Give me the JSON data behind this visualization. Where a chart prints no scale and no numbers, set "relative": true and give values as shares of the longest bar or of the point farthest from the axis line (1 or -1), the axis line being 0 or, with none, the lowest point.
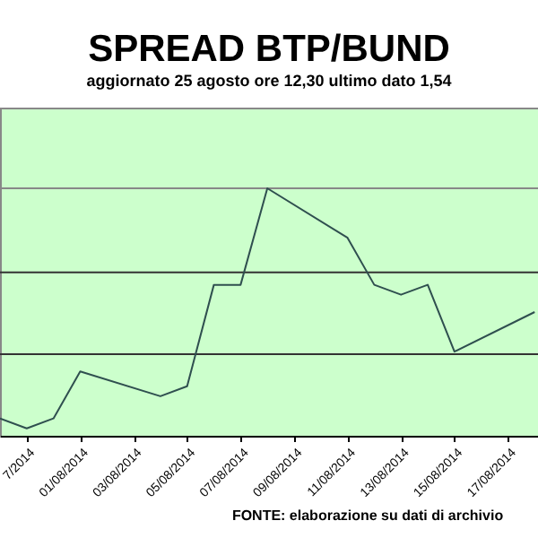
{
  "chart_data": {
    "type": "line",
    "title": "SPREAD BTP/BUND",
    "subtitle": "aggiornato 25 agosto ore 12,30 ultimo dato 1,54",
    "relative": true,
    "x": [
      "2014-07-29",
      "2014-07-30",
      "2014-07-31",
      "2014-08-01",
      "2014-08-04",
      "2014-08-05",
      "2014-08-06",
      "2014-08-07",
      "2014-08-08",
      "2014-08-11",
      "2014-08-12",
      "2014-08-13",
      "2014-08-14",
      "2014-08-15",
      "2014-08-18"
    ],
    "series": [
      {
        "color": "#2f4f4f",
        "values": [
          0.07,
          0.03,
          0.07,
          0.26,
          0.16,
          0.2,
          0.61,
          0.61,
          1,
          0.8,
          0.61,
          0.57,
          0.61,
          0.34,
          0.5
        ]
      }
    ],
    "xlim": [
      "2014-07-29",
      "2014-08-18T03:00"
    ],
    "xticks": [
      {
        "value": "2014-07-30",
        "label": "7/2014"
      },
      {
        "value": "2014-08-01",
        "label": "01/08/2014"
      },
      {
        "value": "2014-08-03",
        "label": "03/08/2014"
      },
      {
        "value": "2014-08-05",
        "label": "05/08/2014"
      },
      {
        "value": "2014-08-07",
        "label": "07/08/2014"
      },
      {
        "value": "2014-08-09",
        "label": "09/08/2014"
      },
      {
        "value": "2014-08-11",
        "label": "11/08/2014"
      },
      {
        "value": "2014-08-13",
        "label": "13/08/2014"
      },
      {
        "value": "2014-08-15",
        "label": "15/08/2014"
      },
      {
        "value": "2014-08-17",
        "label": "17/08/2014"
      }
    ],
    "ref_lines": [
      {
        "axis": "y",
        "value": 1,
        "color": "#888888"
      },
      {
        "axis": "y",
        "value": 0.66,
        "color": "#333333"
      },
      {
        "axis": "y",
        "value": 0.33,
        "color": "#333333"
      }
    ],
    "annotations": [
      "FONTE: elaborazione su dati di archivio"
    ]
  }
}
